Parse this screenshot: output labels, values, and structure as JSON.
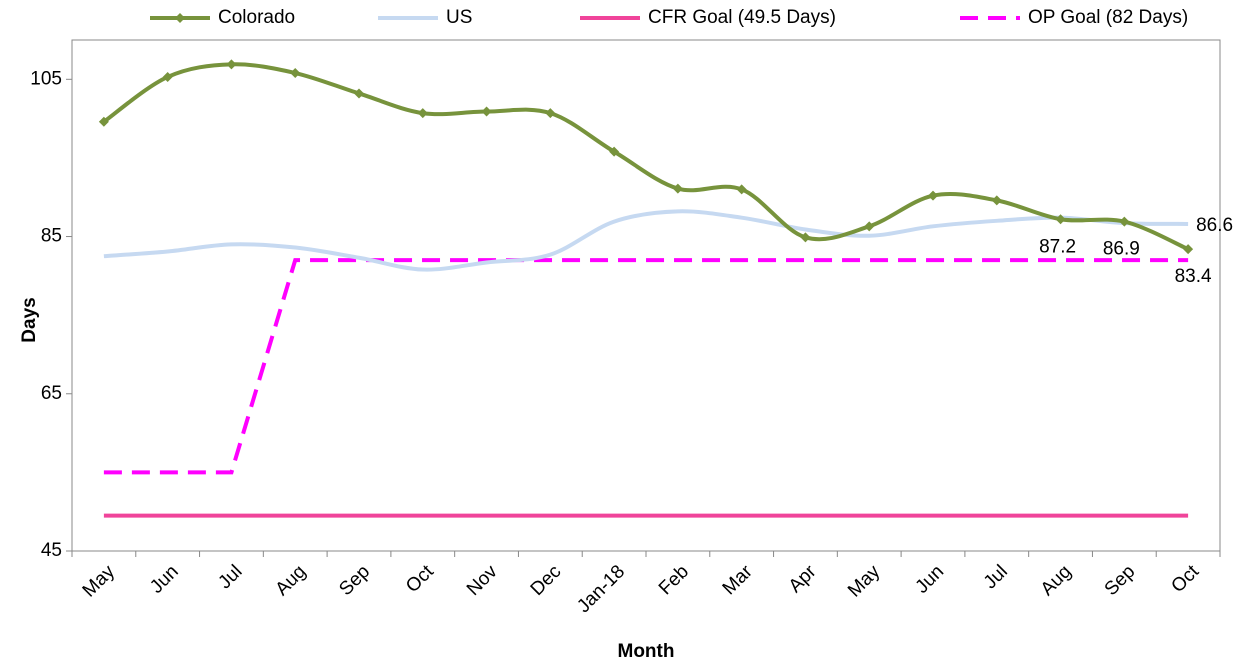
{
  "chart_data": {
    "type": "line",
    "x_label": "Month",
    "y_label": "Days",
    "categories": [
      "May",
      "Jun",
      "Jul",
      "Aug",
      "Sep",
      "Oct",
      "Nov",
      "Dec",
      "Jan-18",
      "Feb",
      "Mar",
      "Apr",
      "May",
      "Jun",
      "Jul",
      "Aug",
      "Sep",
      "Oct"
    ],
    "series": [
      {
        "name": "Colorado",
        "color": "#77933c",
        "smooth": true,
        "marker": "diamond",
        "dash": false,
        "values": [
          99.6,
          105.3,
          106.9,
          105.8,
          103.2,
          100.7,
          100.9,
          100.7,
          95.8,
          91.1,
          91.0,
          84.9,
          86.3,
          90.2,
          89.6,
          87.2,
          86.9,
          83.4
        ],
        "value_labels": [
          null,
          null,
          null,
          null,
          null,
          null,
          null,
          null,
          null,
          null,
          null,
          null,
          null,
          null,
          null,
          "87.2",
          "86.9",
          "83.4"
        ]
      },
      {
        "name": "US",
        "color": "#c6d9f1",
        "smooth": true,
        "marker": null,
        "dash": false,
        "values": [
          82.5,
          83.1,
          84.0,
          83.6,
          82.3,
          80.8,
          81.7,
          82.7,
          86.9,
          88.2,
          87.4,
          85.9,
          85.1,
          86.3,
          87.0,
          87.4,
          86.7,
          86.6
        ],
        "value_labels": [
          null,
          null,
          null,
          null,
          null,
          null,
          null,
          null,
          null,
          null,
          null,
          null,
          null,
          null,
          null,
          null,
          null,
          "86.6"
        ]
      },
      {
        "name": "CFR Goal (49.5 Days)",
        "color": "#f0449a",
        "smooth": false,
        "marker": null,
        "dash": false,
        "values": [
          49.5,
          49.5,
          49.5,
          49.5,
          49.5,
          49.5,
          49.5,
          49.5,
          49.5,
          49.5,
          49.5,
          49.5,
          49.5,
          49.5,
          49.5,
          49.5,
          49.5,
          49.5
        ]
      },
      {
        "name": "OP Goal (82 Days)",
        "color": "#ff00ff",
        "smooth": false,
        "marker": null,
        "dash": true,
        "values": [
          55,
          55,
          55,
          82,
          82,
          82,
          82,
          82,
          82,
          82,
          82,
          82,
          82,
          82,
          82,
          82,
          82,
          82
        ]
      }
    ],
    "ylim": [
      45,
      110
    ],
    "yticks": [
      45,
      65,
      85,
      105
    ],
    "grid": false,
    "legend": "top"
  }
}
